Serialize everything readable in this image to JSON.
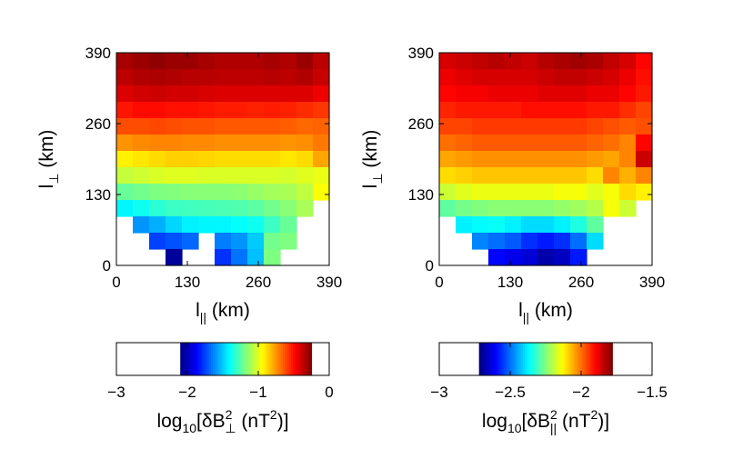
{
  "chart_data": [
    {
      "type": "heatmap",
      "title": "",
      "xlabel": {
        "base": "l",
        "sub": "||",
        "unit": " (km)"
      },
      "ylabel": {
        "base": "l",
        "sub": "⊥",
        "unit": " (km)"
      },
      "xlim": [
        0,
        390
      ],
      "ylim": [
        0,
        390
      ],
      "x_ticks": [
        "0",
        "130",
        "260",
        "390"
      ],
      "y_ticks": [
        "0",
        "130",
        "260",
        "390"
      ],
      "grid_size": 13,
      "value_name": "log10 δB⊥² (nT²)",
      "values_top_to_bottom": [
        [
          -0.32,
          -0.3,
          -0.28,
          -0.3,
          -0.3,
          -0.32,
          -0.34,
          -0.34,
          -0.34,
          -0.32,
          -0.34,
          -0.3,
          -0.36
        ],
        [
          -0.36,
          -0.34,
          -0.33,
          -0.34,
          -0.35,
          -0.35,
          -0.36,
          -0.36,
          -0.36,
          -0.35,
          -0.36,
          -0.34,
          -0.38
        ],
        [
          -0.42,
          -0.4,
          -0.39,
          -0.4,
          -0.4,
          -0.41,
          -0.42,
          -0.42,
          -0.42,
          -0.42,
          -0.42,
          -0.42,
          -0.45
        ],
        [
          -0.52,
          -0.5,
          -0.5,
          -0.51,
          -0.51,
          -0.52,
          -0.53,
          -0.53,
          -0.54,
          -0.53,
          -0.54,
          -0.56,
          -0.58
        ],
        [
          -0.62,
          -0.62,
          -0.61,
          -0.62,
          -0.63,
          -0.63,
          -0.64,
          -0.64,
          -0.64,
          -0.64,
          -0.65,
          -0.67,
          -0.66
        ],
        [
          -0.75,
          -0.73,
          -0.72,
          -0.72,
          -0.73,
          -0.73,
          -0.74,
          -0.74,
          -0.74,
          -0.74,
          -0.75,
          -0.74,
          -0.7
        ],
        [
          -0.92,
          -0.9,
          -0.88,
          -0.86,
          -0.86,
          -0.87,
          -0.88,
          -0.88,
          -0.88,
          -0.88,
          -0.9,
          -0.88,
          -0.78
        ],
        [
          -1.05,
          -1.03,
          -1.01,
          -1.0,
          -1.0,
          -1.01,
          -1.01,
          -1.01,
          -1.01,
          -1.01,
          -1.02,
          -1.0,
          -0.98
        ],
        [
          -1.22,
          -1.2,
          -1.18,
          -1.17,
          -1.16,
          -1.16,
          -1.16,
          -1.15,
          -1.13,
          -1.11,
          -1.1,
          -1.06,
          -0.95
        ],
        [
          -1.42,
          -1.38,
          -1.33,
          -1.3,
          -1.29,
          -1.28,
          -1.27,
          -1.26,
          -1.24,
          -1.2,
          -1.16,
          -1.1,
          null
        ],
        [
          null,
          -1.6,
          -1.55,
          -1.48,
          -1.43,
          -1.42,
          -1.42,
          -1.4,
          -1.38,
          -1.3,
          -1.22,
          null,
          null
        ],
        [
          null,
          null,
          -1.75,
          -1.72,
          -1.68,
          null,
          -1.64,
          -1.6,
          -1.5,
          -1.2,
          -1.18,
          null,
          null
        ],
        [
          null,
          null,
          null,
          -2.05,
          null,
          null,
          -1.78,
          -1.66,
          -1.52,
          -1.18,
          null,
          null,
          null
        ]
      ],
      "colorbar": {
        "range": [
          -3,
          0
        ],
        "data_range": [
          -2.1,
          -0.25
        ],
        "ticks": [
          "−3",
          "−2",
          "−1",
          "0"
        ],
        "label": {
          "prefix": "log",
          "sub1": "10",
          "mid": "[δB",
          "sup": "2",
          "sub2": "⊥",
          "suffix": " (nT",
          "sup2": "2",
          "end": ")]"
        }
      }
    },
    {
      "type": "heatmap",
      "title": "",
      "xlabel": {
        "base": "l",
        "sub": "||",
        "unit": " (km)"
      },
      "ylabel": {
        "base": "l",
        "sub": "⊥",
        "unit": " (km)"
      },
      "xlim": [
        0,
        390
      ],
      "ylim": [
        0,
        390
      ],
      "x_ticks": [
        "0",
        "130",
        "260",
        "390"
      ],
      "y_ticks": [
        "0",
        "130",
        "260",
        "390"
      ],
      "grid_size": 13,
      "value_name": "log10 δB||² (nT²)",
      "values_top_to_bottom": [
        [
          -1.86,
          -1.85,
          -1.84,
          -1.83,
          -1.84,
          -1.85,
          -1.83,
          -1.82,
          -1.81,
          -1.82,
          -1.84,
          -1.86,
          -1.9
        ],
        [
          -1.88,
          -1.87,
          -1.86,
          -1.86,
          -1.86,
          -1.86,
          -1.85,
          -1.84,
          -1.84,
          -1.85,
          -1.86,
          -1.88,
          -1.91
        ],
        [
          -1.9,
          -1.89,
          -1.89,
          -1.88,
          -1.88,
          -1.88,
          -1.87,
          -1.87,
          -1.87,
          -1.88,
          -1.88,
          -1.9,
          -1.92
        ],
        [
          -1.93,
          -1.92,
          -1.92,
          -1.92,
          -1.92,
          -1.91,
          -1.91,
          -1.91,
          -1.91,
          -1.92,
          -1.92,
          -1.94,
          -1.96
        ],
        [
          -1.96,
          -1.96,
          -1.95,
          -1.95,
          -1.95,
          -1.95,
          -1.95,
          -1.95,
          -1.95,
          -1.96,
          -1.97,
          -1.98,
          -1.97
        ],
        [
          -2.0,
          -1.99,
          -1.98,
          -1.98,
          -1.98,
          -1.98,
          -1.98,
          -1.98,
          -1.98,
          -1.99,
          -2.0,
          -2.02,
          -1.9
        ],
        [
          -2.05,
          -2.04,
          -2.03,
          -2.03,
          -2.03,
          -2.03,
          -2.03,
          -2.03,
          -2.03,
          -2.04,
          -2.05,
          -2.02,
          -1.85
        ],
        [
          -2.1,
          -2.09,
          -2.08,
          -2.08,
          -2.08,
          -2.08,
          -2.08,
          -2.08,
          -2.08,
          -2.1,
          -2.02,
          -2.06,
          -2.02
        ],
        [
          -2.18,
          -2.16,
          -2.15,
          -2.15,
          -2.15,
          -2.15,
          -2.15,
          -2.14,
          -2.14,
          -2.16,
          -2.14,
          -2.1,
          -2.12
        ],
        [
          -2.28,
          -2.26,
          -2.25,
          -2.24,
          -2.24,
          -2.24,
          -2.24,
          -2.23,
          -2.22,
          -2.2,
          -2.14,
          -2.18,
          null
        ],
        [
          null,
          -2.38,
          -2.37,
          -2.36,
          -2.38,
          -2.4,
          -2.4,
          -2.38,
          -2.34,
          -2.28,
          null,
          null,
          null
        ],
        [
          null,
          null,
          -2.48,
          -2.5,
          -2.52,
          -2.56,
          -2.58,
          -2.56,
          -2.5,
          -2.4,
          null,
          null,
          null
        ],
        [
          null,
          null,
          null,
          -2.6,
          -2.62,
          -2.64,
          -2.68,
          -2.66,
          -2.58,
          null,
          null,
          null,
          null
        ]
      ],
      "colorbar": {
        "range": [
          -3,
          -1.5
        ],
        "data_range": [
          -2.72,
          -1.78
        ],
        "ticks": [
          "−3",
          "−2.5",
          "−2",
          "−1.5"
        ],
        "label": {
          "prefix": "log",
          "sub1": "10",
          "mid": "[δB",
          "sup": "2",
          "sub2": "||",
          "suffix": " (nT",
          "sup2": "2",
          "end": ")]"
        }
      }
    }
  ]
}
